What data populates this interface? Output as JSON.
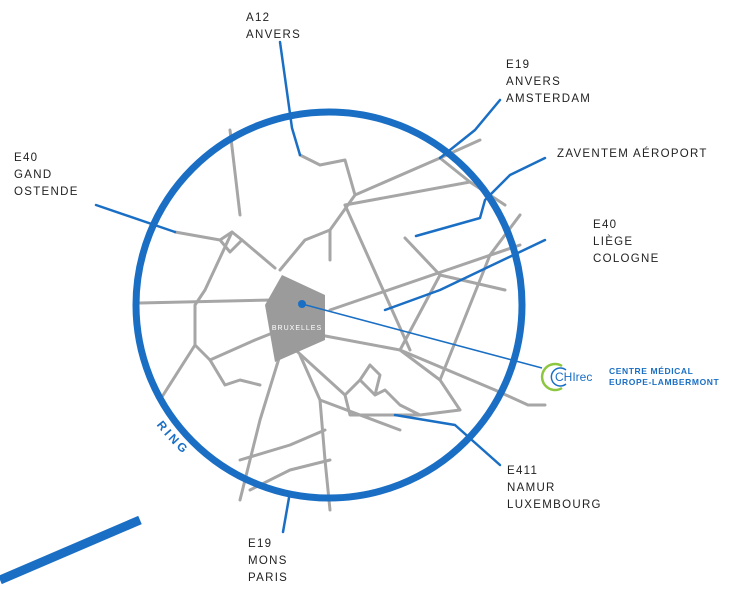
{
  "map": {
    "center_label": "BRUXELLES",
    "ring_label": "RING",
    "colors": {
      "ring": "#1a6fc4",
      "roads": "#a6a6a6",
      "city": "#9b9b9b",
      "logo_green": "#8dc63f"
    },
    "routes": [
      {
        "id": "a12",
        "lines": [
          "A12",
          "ANVERS"
        ]
      },
      {
        "id": "e19-north",
        "lines": [
          "E19",
          "ANVERS",
          "AMSTERDAM"
        ]
      },
      {
        "id": "zaventem",
        "lines": [
          "ZAVENTEM AÉROPORT"
        ]
      },
      {
        "id": "e40-east",
        "lines": [
          "E40",
          "LIÈGE",
          "COLOGNE"
        ]
      },
      {
        "id": "e40-west",
        "lines": [
          "E40",
          "GAND",
          "OSTENDE"
        ]
      },
      {
        "id": "e411",
        "lines": [
          "E411",
          "NAMUR",
          "LUXEMBOURG"
        ]
      },
      {
        "id": "e19-south",
        "lines": [
          "E19",
          "MONS",
          "PARIS"
        ]
      }
    ],
    "clinic": {
      "logo_text": "CHIrec",
      "name_line1": "CENTRE MÉDICAL",
      "name_line2": "EUROPE-LAMBERMONT"
    }
  }
}
